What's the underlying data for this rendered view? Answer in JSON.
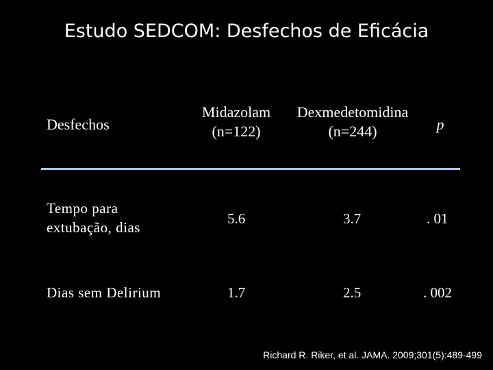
{
  "slide": {
    "title": "Estudo SEDCOM: Desfechos de Eficácia",
    "citation": "Richard R. Riker, et al. JAMA. 2009;301(5):489-499"
  },
  "table": {
    "headers": {
      "outcome": "Desfechos",
      "midazolam": "Midazolam",
      "midazolam_n": "(n=122)",
      "dexmed": "Dexmedetomidina",
      "dexmed_n": "(n=244)",
      "p": "p"
    },
    "rows": [
      {
        "label_line1": "Tempo para",
        "label_line2": "extubação, dias",
        "midazolam": "5.6",
        "dexmed": "3.7",
        "p": ". 01"
      },
      {
        "label_line1": "Dias sem Delirium",
        "label_line2": "",
        "midazolam": "1.7",
        "dexmed": "2.5",
        "p": ". 002"
      }
    ]
  },
  "colors": {
    "background": "#000000",
    "text": "#ffffff",
    "rule": "#a9c7ee"
  }
}
